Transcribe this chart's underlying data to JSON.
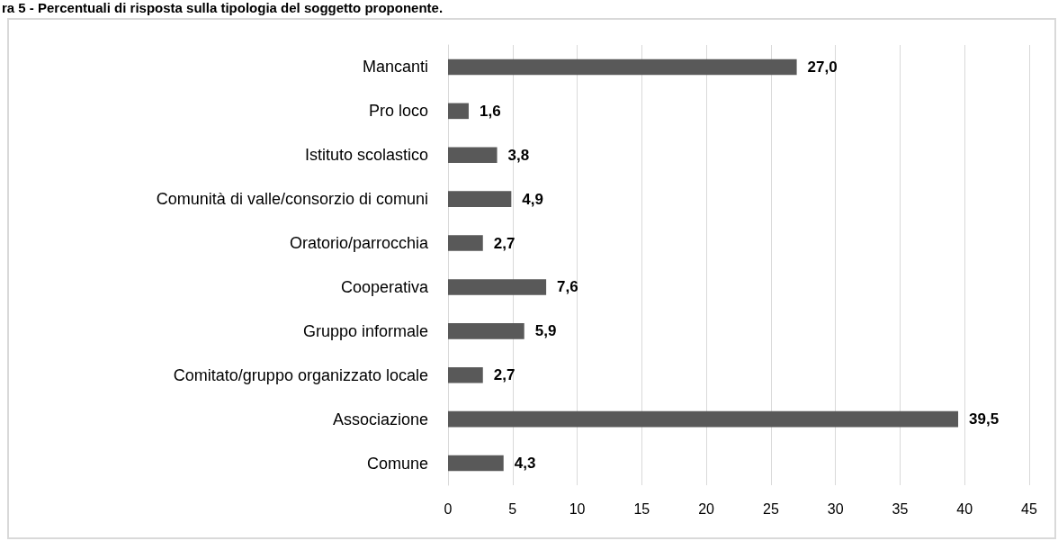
{
  "chart_data": {
    "type": "bar",
    "orientation": "horizontal",
    "title": "ra 5 - Percentuali di risposta sulla tipologia del soggetto proponente.",
    "categories": [
      "Mancanti",
      "Pro loco",
      "Istituto scolastico",
      "Comunità di valle/consorzio di comuni",
      "Oratorio/parrocchia",
      "Cooperativa",
      "Gruppo informale",
      "Comitato/gruppo organizzato locale",
      "Associazione",
      "Comune"
    ],
    "values": [
      27.0,
      1.6,
      3.8,
      4.9,
      2.7,
      7.6,
      5.9,
      2.7,
      39.5,
      4.3
    ],
    "value_labels": [
      "27,0",
      "1,6",
      "3,8",
      "4,9",
      "2,7",
      "7,6",
      "5,9",
      "2,7",
      "39,5",
      "4,3"
    ],
    "color": "#595959",
    "xlim": [
      0,
      45
    ],
    "xticks": [
      0,
      5,
      10,
      15,
      20,
      25,
      30,
      35,
      40,
      45
    ],
    "grid": "x"
  }
}
